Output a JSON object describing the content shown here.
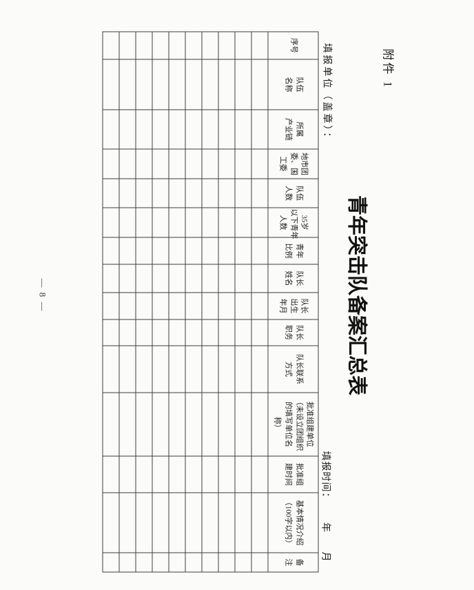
{
  "colors": {
    "paper": "#fbfbf9",
    "ink": "#1e1e1e",
    "grid_line": "#3d3d3d"
  },
  "page": {
    "attachment_label": "附件 1",
    "title": "青年突击队备案汇总表",
    "reporting_unit_label": "填报单位（盖章）：",
    "reporting_time_label": "填报时间：",
    "time_year_label": "年",
    "time_month_label": "月",
    "page_number": "— 8 —"
  },
  "table": {
    "empty_row_count": 10,
    "columns": [
      {
        "label": "序号"
      },
      {
        "label": "队伍\n名称"
      },
      {
        "label": "所属\n产业链"
      },
      {
        "label": "地市团\n委、国\n工委"
      },
      {
        "label": "队伍\n人数"
      },
      {
        "label": "35岁\n以下青年\n人数"
      },
      {
        "label": "青年\n比例"
      },
      {
        "label": "队长\n姓名"
      },
      {
        "label": "队长\n出生\n年月"
      },
      {
        "label": "队长\n职务"
      },
      {
        "label": "队长联系\n方式"
      },
      {
        "label": "批准组建单位\n（未设立团组织\n的填写单位名\n称）"
      },
      {
        "label": "批准组\n建时间"
      },
      {
        "label": "基本情况介绍\n（100字以内）"
      },
      {
        "label": "备\n注"
      }
    ]
  }
}
